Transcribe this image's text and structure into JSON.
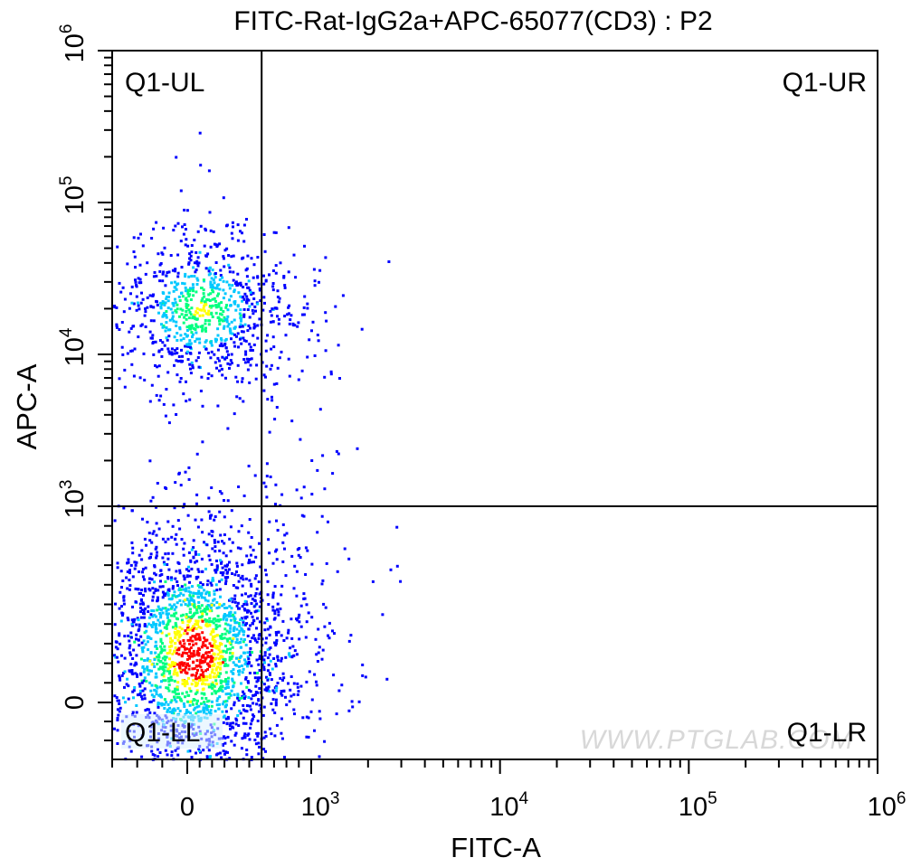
{
  "chart_data": {
    "type": "scatter",
    "title": "FITC-Rat-IgG2a+APC-65077(CD3) : P2",
    "xlabel": "FITC-A",
    "ylabel": "APC-A",
    "x_scale": "biexponential",
    "y_scale": "biexponential",
    "xlim": [
      -300,
      1000000
    ],
    "ylim": [
      -300,
      1000000
    ],
    "x_ticks": [
      {
        "value": 0,
        "base": "0",
        "exp": ""
      },
      {
        "value": 1000,
        "base": "10",
        "exp": "3"
      },
      {
        "value": 10000,
        "base": "10",
        "exp": "4"
      },
      {
        "value": 100000,
        "base": "10",
        "exp": "5"
      },
      {
        "value": 1000000,
        "base": "10",
        "exp": "6"
      }
    ],
    "y_ticks": [
      {
        "value": 0,
        "base": "0",
        "exp": ""
      },
      {
        "value": 1000,
        "base": "10",
        "exp": "3"
      },
      {
        "value": 10000,
        "base": "10",
        "exp": "4"
      },
      {
        "value": 100000,
        "base": "10",
        "exp": "5"
      },
      {
        "value": 1000000,
        "base": "10",
        "exp": "6"
      }
    ],
    "gate": {
      "x": 600,
      "y": 1000
    },
    "quadrants": [
      {
        "name": "Q1-UL",
        "position": "top-left"
      },
      {
        "name": "Q1-UR",
        "position": "top-right"
      },
      {
        "name": "Q1-LL",
        "position": "bottom-left"
      },
      {
        "name": "Q1-LR",
        "position": "bottom-right"
      }
    ],
    "populations": [
      {
        "label": "CD3+ cluster",
        "x_center": 100,
        "y_center": 20000,
        "count": 900
      },
      {
        "label": "CD3- cluster",
        "x_center": 50,
        "y_center": 250,
        "count": 2400
      }
    ],
    "color_scale": [
      "#0000ff",
      "#00c8ff",
      "#00ff80",
      "#ffff00",
      "#ff0000"
    ],
    "watermark": "WWW.PTGLAB.COM"
  }
}
